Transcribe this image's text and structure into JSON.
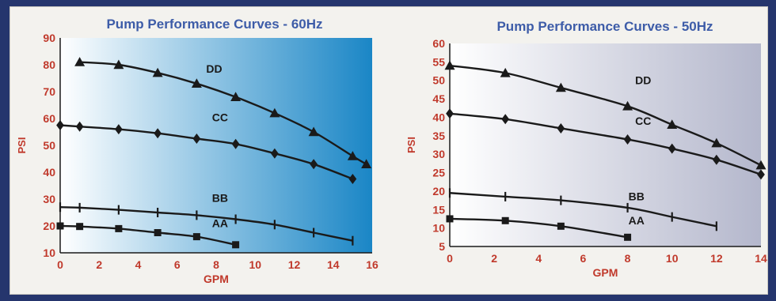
{
  "colors": {
    "background": "#25356d",
    "frame": "#f3f2ee",
    "curve": "#1a1a1a",
    "title": "#3d5ca8",
    "axis_text": "#c0392b",
    "chart1_gradient": [
      "#ffffff",
      "#1a86c6"
    ],
    "chart2_gradient": [
      "#ffffff",
      "#b4b7cc"
    ]
  },
  "chart_data": [
    {
      "type": "line",
      "title": "Pump Performance Curves - 60Hz",
      "xlabel": "GPM",
      "ylabel": "PSI",
      "xlim": [
        0,
        16
      ],
      "ylim": [
        10,
        90
      ],
      "xticks": [
        0,
        2,
        4,
        6,
        8,
        10,
        12,
        14,
        16
      ],
      "yticks": [
        10,
        20,
        30,
        40,
        50,
        60,
        70,
        80,
        90
      ],
      "grid": false,
      "series": [
        {
          "name": "DD",
          "marker": "triangle",
          "x": [
            1,
            3,
            5,
            7,
            9,
            11,
            13,
            15,
            15.7
          ],
          "y": [
            81,
            80,
            77,
            73,
            68,
            62,
            55,
            46,
            43
          ],
          "label_at": [
            7.9,
            77
          ]
        },
        {
          "name": "CC",
          "marker": "diamond",
          "x": [
            0,
            1,
            3,
            5,
            7,
            9,
            11,
            13,
            15
          ],
          "y": [
            57.5,
            57,
            56,
            54.5,
            52.5,
            50.5,
            47,
            43,
            37.5
          ],
          "label_at": [
            8.2,
            59
          ]
        },
        {
          "name": "BB",
          "marker": "cross",
          "x": [
            0,
            1,
            3,
            5,
            7,
            9,
            11,
            13,
            15
          ],
          "y": [
            27,
            26.8,
            26,
            25,
            24,
            22.5,
            20.5,
            17.5,
            14.5
          ],
          "label_at": [
            8.2,
            29
          ]
        },
        {
          "name": "AA",
          "marker": "square",
          "x": [
            0,
            1,
            3,
            5,
            7,
            9
          ],
          "y": [
            20,
            19.8,
            19,
            17.5,
            16,
            13
          ],
          "label_at": [
            8.2,
            19.5
          ]
        }
      ]
    },
    {
      "type": "line",
      "title": "Pump Performance Curves - 50Hz",
      "xlabel": "GPM",
      "ylabel": "PSI",
      "xlim": [
        0,
        14
      ],
      "ylim": [
        5,
        60
      ],
      "xticks": [
        0,
        2,
        4,
        6,
        8,
        10,
        12,
        14
      ],
      "yticks": [
        5,
        10,
        15,
        20,
        25,
        30,
        35,
        40,
        45,
        50,
        55,
        60
      ],
      "grid": false,
      "series": [
        {
          "name": "DD",
          "marker": "triangle",
          "x": [
            0,
            2.5,
            5,
            8,
            10,
            12,
            14
          ],
          "y": [
            54,
            52,
            48,
            43,
            38,
            33,
            27
          ],
          "label_at": [
            8.7,
            49
          ]
        },
        {
          "name": "CC",
          "marker": "diamond",
          "x": [
            0,
            2.5,
            5,
            8,
            10,
            12,
            14
          ],
          "y": [
            41,
            39.5,
            37,
            34,
            31.5,
            28.5,
            24.5
          ],
          "label_at": [
            8.7,
            38
          ]
        },
        {
          "name": "BB",
          "marker": "cross",
          "x": [
            0,
            2.5,
            5,
            8,
            10,
            12
          ],
          "y": [
            19.5,
            18.5,
            17.5,
            15.5,
            13,
            10.5
          ],
          "label_at": [
            8.4,
            17.5
          ]
        },
        {
          "name": "AA",
          "marker": "square",
          "x": [
            0,
            2.5,
            5,
            8
          ],
          "y": [
            12.5,
            12,
            10.5,
            7.5
          ],
          "label_at": [
            8.4,
            11
          ]
        }
      ]
    }
  ]
}
